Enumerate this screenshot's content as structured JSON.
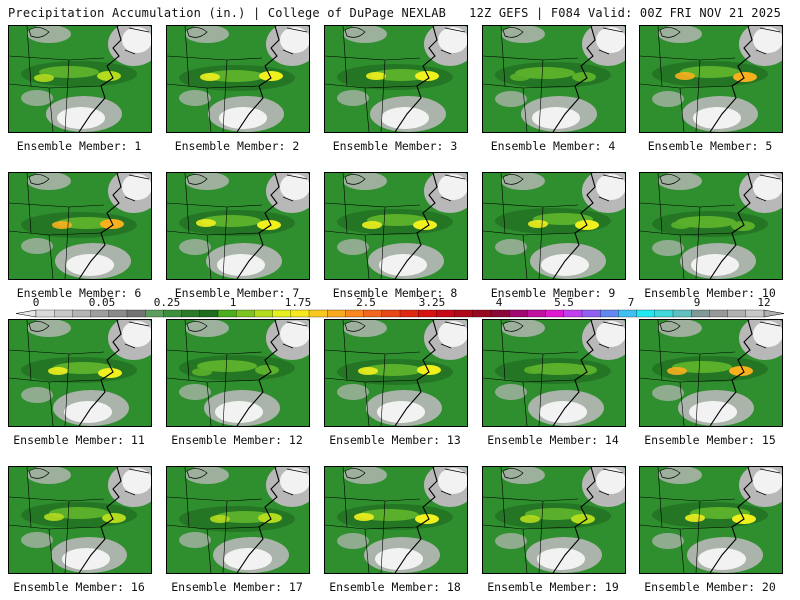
{
  "header": {
    "left_title": "Precipitation Accumulation (in.) | College of DuPage NEXLAB",
    "right_title": "12Z GEFS | F084 Valid: 00Z FRI NOV 21 2025"
  },
  "members": [
    {
      "label": "Ensemble Member: 1",
      "max_band": "yellow-green"
    },
    {
      "label": "Ensemble Member: 2",
      "max_band": "yellow"
    },
    {
      "label": "Ensemble Member: 3",
      "max_band": "yellow"
    },
    {
      "label": "Ensemble Member: 4",
      "max_band": "light-green"
    },
    {
      "label": "Ensemble Member: 5",
      "max_band": "orange"
    },
    {
      "label": "Ensemble Member: 6",
      "max_band": "orange"
    },
    {
      "label": "Ensemble Member: 7",
      "max_band": "yellow"
    },
    {
      "label": "Ensemble Member: 8",
      "max_band": "yellow"
    },
    {
      "label": "Ensemble Member: 9",
      "max_band": "yellow"
    },
    {
      "label": "Ensemble Member: 10",
      "max_band": "light-green"
    },
    {
      "label": "Ensemble Member: 11",
      "max_band": "yellow"
    },
    {
      "label": "Ensemble Member: 12",
      "max_band": "light-green"
    },
    {
      "label": "Ensemble Member: 13",
      "max_band": "yellow"
    },
    {
      "label": "Ensemble Member: 14",
      "max_band": "light-green"
    },
    {
      "label": "Ensemble Member: 15",
      "max_band": "orange"
    },
    {
      "label": "Ensemble Member: 16",
      "max_band": "yellow-green"
    },
    {
      "label": "Ensemble Member: 17",
      "max_band": "yellow-green"
    },
    {
      "label": "Ensemble Member: 18",
      "max_band": "yellow"
    },
    {
      "label": "Ensemble Member: 19",
      "max_band": "yellow-green"
    },
    {
      "label": "Ensemble Member: 20",
      "max_band": "yellow"
    }
  ],
  "colorbar": {
    "tick_labels": [
      "0",
      "0.05",
      "0.25",
      "1",
      "1.75",
      "2.5",
      "3.25",
      "4",
      "5.5",
      "7",
      "9",
      "12"
    ],
    "colors": [
      "#d9d9d9",
      "#c8c8c8",
      "#b4b4b4",
      "#9e9e9e",
      "#8a8a8a",
      "#737373",
      "#5e9e5e",
      "#3c8f3c",
      "#2a7a2a",
      "#1f6b1f",
      "#4cad1f",
      "#7cc41f",
      "#b4dc1f",
      "#e6f01f",
      "#f8e81f",
      "#f8c81f",
      "#f8a81f",
      "#f8881f",
      "#f0681f",
      "#e84818",
      "#e02810",
      "#d81010",
      "#c80818",
      "#b00818",
      "#980820",
      "#880838",
      "#a00870",
      "#c010a0",
      "#e018d0",
      "#c040f0",
      "#9060f0",
      "#6088f0",
      "#40c0f0",
      "#20e8f0",
      "#40d8d8",
      "#60c0c0",
      "#809898",
      "#989898",
      "#b0b0b0",
      "#c8c8c8"
    ]
  },
  "colors": {
    "background": "#ffffff",
    "base_green": "#2f8f2f",
    "dark_green": "#1f6b1f",
    "light_green": "#5ab02a",
    "yellow_green": "#b4dc1f",
    "yellow": "#f0f01f",
    "orange": "#f8b01f",
    "dry_white": "#f2f2f2",
    "dry_gray": "#b8b8b8",
    "coast": "#000000"
  }
}
